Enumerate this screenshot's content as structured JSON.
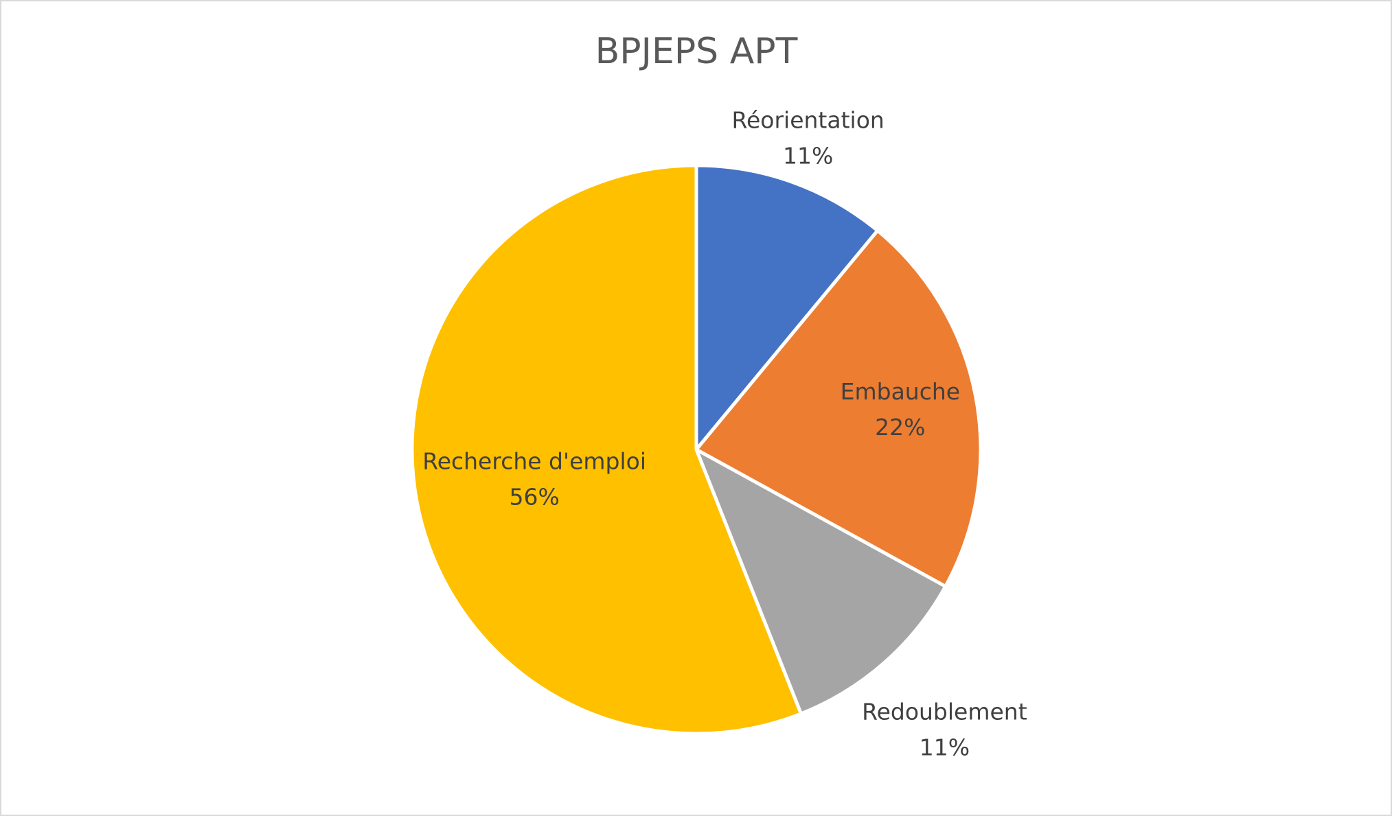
{
  "chart_data": {
    "type": "pie",
    "title": "BPJEPS APT",
    "categories": [
      "Réorientation",
      "Embauche",
      "Redoublement",
      "Recherche d'emploi"
    ],
    "values": [
      11,
      22,
      11,
      56
    ],
    "value_labels": [
      "11%",
      "22%",
      "11%",
      "56%"
    ],
    "colors": [
      "#4472c4",
      "#ed7d31",
      "#a5a5a5",
      "#ffc000"
    ]
  }
}
